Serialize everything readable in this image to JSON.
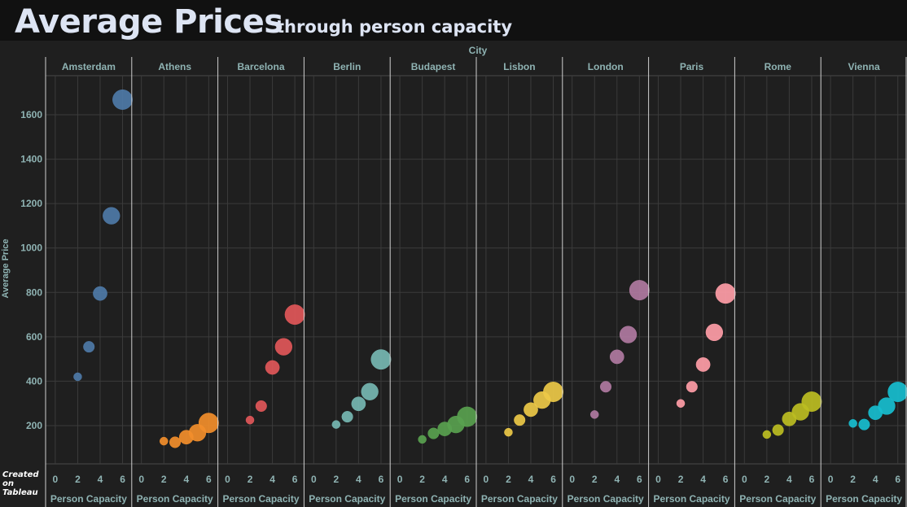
{
  "header": {
    "title": "Average Prices",
    "subtitle": "through person capacity"
  },
  "footer": {
    "line1": "Created",
    "line2": "on",
    "line3": "Tableau"
  },
  "chart_data": {
    "type": "scatter",
    "column_header": "City",
    "xlabel": "Person Capacity",
    "ylabel": "Average Price",
    "xlim": [
      -0.5,
      6.6
    ],
    "ylim": [
      40,
      1720
    ],
    "x_ticks": [
      0,
      2,
      4,
      6
    ],
    "y_ticks": [
      200,
      400,
      600,
      800,
      1000,
      1200,
      1400,
      1600
    ],
    "grid": true,
    "panels": [
      {
        "city": "Amsterdam",
        "color": "#4e79a7",
        "x": [
          2,
          3,
          4,
          5,
          6
        ],
        "y": [
          420,
          555,
          795,
          1145,
          1668
        ]
      },
      {
        "city": "Athens",
        "color": "#f28e2b",
        "x": [
          2,
          3,
          4,
          5,
          6
        ],
        "y": [
          130,
          125,
          148,
          168,
          212
        ]
      },
      {
        "city": "Barcelona",
        "color": "#e15759",
        "x": [
          2,
          3,
          4,
          5,
          6
        ],
        "y": [
          225,
          288,
          462,
          555,
          700
        ]
      },
      {
        "city": "Berlin",
        "color": "#76b7b2",
        "x": [
          2,
          3,
          4,
          5,
          6
        ],
        "y": [
          205,
          240,
          298,
          353,
          498
        ]
      },
      {
        "city": "Budapest",
        "color": "#59a14f",
        "x": [
          2,
          3,
          4,
          5,
          6
        ],
        "y": [
          138,
          165,
          185,
          205,
          240
        ]
      },
      {
        "city": "Lisbon",
        "color": "#edc948",
        "x": [
          2,
          3,
          4,
          5,
          6
        ],
        "y": [
          170,
          225,
          272,
          315,
          352
        ]
      },
      {
        "city": "London",
        "color": "#b07aa1",
        "x": [
          2,
          3,
          4,
          5,
          6
        ],
        "y": [
          250,
          375,
          510,
          610,
          810
        ]
      },
      {
        "city": "Paris",
        "color": "#ff9da7",
        "x": [
          2,
          3,
          4,
          5,
          6
        ],
        "y": [
          300,
          375,
          475,
          620,
          795
        ]
      },
      {
        "city": "Rome",
        "color": "#bcbd22",
        "x": [
          2,
          3,
          4,
          5,
          6
        ],
        "y": [
          160,
          180,
          230,
          262,
          308
        ]
      },
      {
        "city": "Vienna",
        "color": "#17becf",
        "x": [
          2,
          3,
          4,
          5,
          6
        ],
        "y": [
          210,
          205,
          258,
          288,
          352
        ]
      }
    ]
  }
}
